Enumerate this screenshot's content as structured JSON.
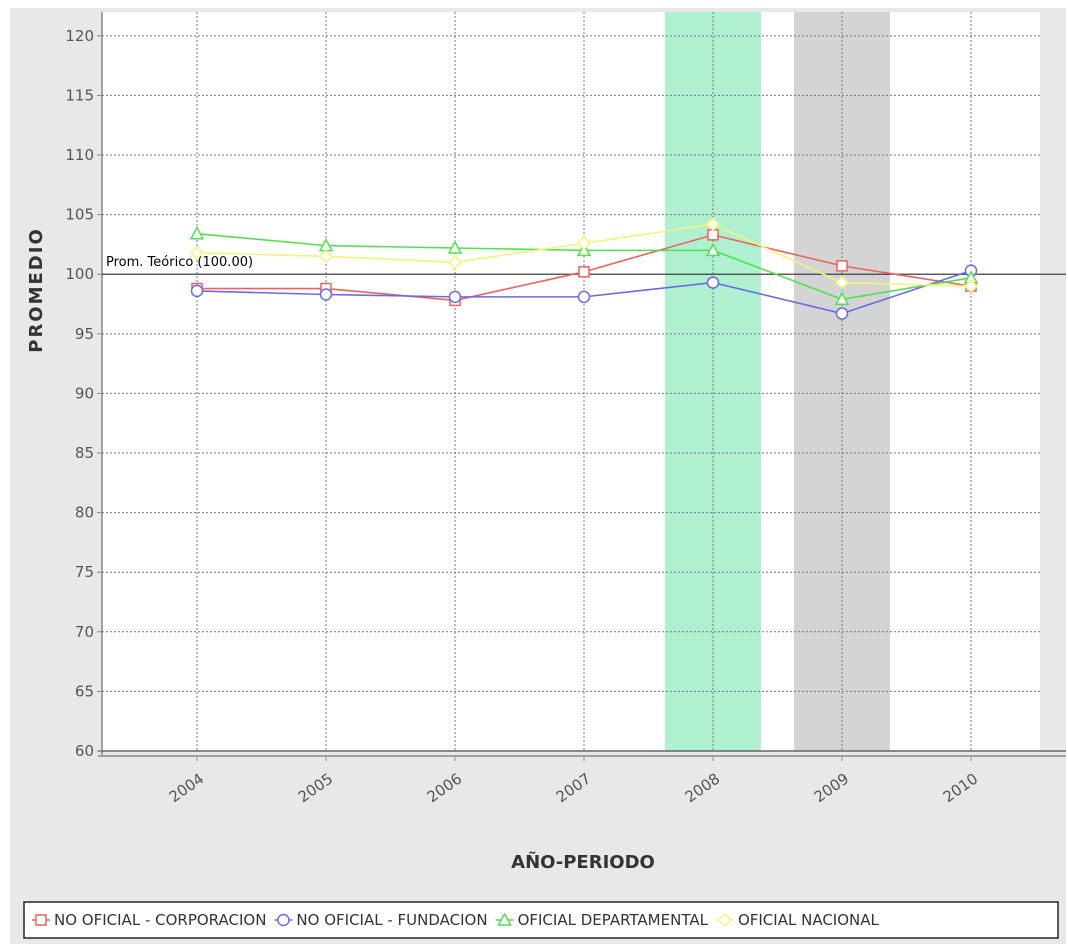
{
  "chart_data": {
    "type": "line",
    "categories": [
      "2004",
      "2005",
      "2006",
      "2007",
      "2008",
      "2009",
      "2010"
    ],
    "series": [
      {
        "name": "NO OFICIAL - CORPORACION",
        "color": "#f06060",
        "marker": "square",
        "values": [
          98.8,
          98.8,
          97.8,
          100.2,
          103.3,
          100.7,
          99.0
        ]
      },
      {
        "name": "NO OFICIAL - FUNDACION",
        "color": "#6a6ae8",
        "marker": "circle",
        "values": [
          98.6,
          98.3,
          98.1,
          98.1,
          99.3,
          96.7,
          100.3
        ]
      },
      {
        "name": "OFICIAL DEPARTAMENTAL",
        "color": "#50e050",
        "marker": "triangle",
        "values": [
          103.4,
          102.4,
          102.2,
          102.0,
          102.0,
          97.9,
          99.7
        ]
      },
      {
        "name": "OFICIAL NACIONAL",
        "color": "#f4f478",
        "marker": "diamond",
        "values": [
          101.8,
          101.5,
          101.0,
          102.6,
          104.2,
          99.3,
          99.0
        ]
      }
    ],
    "xlabel": "AÑO-PERIODO",
    "ylabel": "PROMEDIO",
    "ylim": [
      60,
      122
    ],
    "yticks": [
      60,
      65,
      70,
      75,
      80,
      85,
      90,
      95,
      100,
      105,
      110,
      115,
      120
    ],
    "reference_line": {
      "value": 100,
      "label": "Prom. Teórico (100.00)"
    },
    "highlight_bands": [
      {
        "category": "2008",
        "color": "#aef0d0"
      },
      {
        "category": "2009",
        "color": "#d4d4d4"
      }
    ],
    "grid": true,
    "legend": "bottom"
  }
}
